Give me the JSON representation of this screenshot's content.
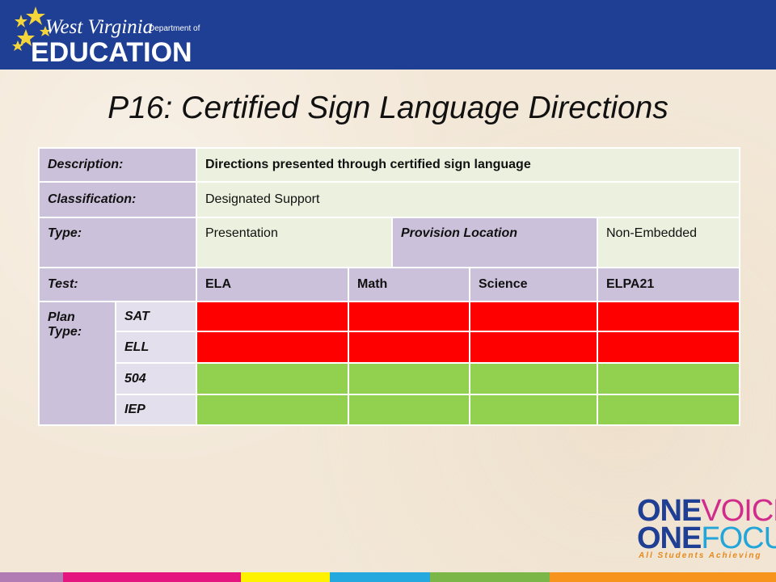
{
  "logo": {
    "line1": "West Virginia",
    "dept": "Department of",
    "line2": "EDUCATION"
  },
  "title": "P16:  Certified Sign Language Directions",
  "table": {
    "description_label": "Description:",
    "description_value": "Directions presented through certified sign language",
    "classification_label": "Classification:",
    "classification_value": "Designated Support",
    "type_label": "Type:",
    "type_value": "Presentation",
    "provision_label": "Provision Location",
    "provision_value": "Non-Embedded",
    "test_label": "Test:",
    "tests": [
      "ELA",
      "Math",
      "Science",
      "ELPA21"
    ],
    "plan_label": "Plan Type:",
    "plans": [
      "SAT",
      "ELL",
      "504",
      "IEP"
    ],
    "plan_status": {
      "SAT": [
        "not-allowed",
        "not-allowed",
        "not-allowed",
        "not-allowed"
      ],
      "ELL": [
        "not-allowed",
        "not-allowed",
        "not-allowed",
        "not-allowed"
      ],
      "504": [
        "allowed",
        "allowed",
        "allowed",
        "allowed"
      ],
      "IEP": [
        "allowed",
        "allowed",
        "allowed",
        "allowed"
      ]
    }
  },
  "brand": {
    "one": "ONE",
    "voice": "VOICE",
    "focus": "FOCUS",
    "tagline": "All Students Achieving"
  },
  "colors": {
    "header": "#1f3f94",
    "not_allowed": "#ff0000",
    "allowed": "#92d050",
    "bottom_bar": [
      "#b07cb3",
      "#e4157e",
      "#fff200",
      "#24a8dd",
      "#7ab648",
      "#f7941d"
    ]
  }
}
